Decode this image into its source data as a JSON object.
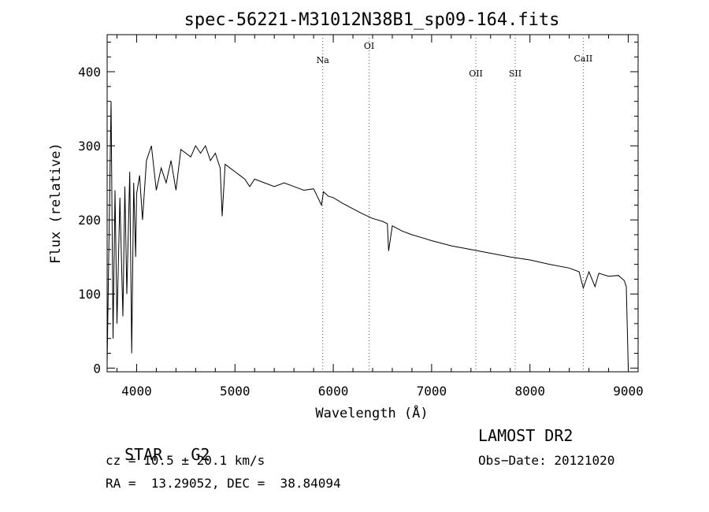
{
  "chart_data": {
    "type": "line",
    "title": "spec-56221-M31012N38B1_sp09-164.fits",
    "xlabel": "Wavelength (Å)",
    "ylabel": "Flux (relative)",
    "xlim": [
      3700,
      9100
    ],
    "ylim": [
      -5,
      450
    ],
    "xticks": [
      4000,
      5000,
      6000,
      7000,
      8000,
      9000
    ],
    "yticks": [
      0,
      100,
      200,
      300,
      400
    ],
    "grid": false,
    "series": [
      {
        "x": [
          3700,
          3740,
          3760,
          3780,
          3800,
          3830,
          3860,
          3880,
          3900,
          3930,
          3950,
          3970,
          3990,
          4000,
          4030,
          4060,
          4100,
          4150,
          4200,
          4250,
          4300,
          4350,
          4400,
          4450,
          4500,
          4550,
          4600,
          4650,
          4700,
          4750,
          4800,
          4850,
          4870,
          4900,
          4950,
          5000,
          5050,
          5100,
          5150,
          5200,
          5300,
          5400,
          5500,
          5600,
          5700,
          5800,
          5880,
          5900,
          5950,
          6000,
          6100,
          6200,
          6300,
          6400,
          6500,
          6550,
          6563,
          6600,
          6700,
          6800,
          6900,
          7000,
          7200,
          7400,
          7600,
          7800,
          8000,
          8200,
          8400,
          8500,
          8542,
          8600,
          8662,
          8700,
          8800,
          8900,
          8960,
          8980,
          9000
        ],
        "values": [
          5,
          360,
          40,
          240,
          60,
          230,
          70,
          245,
          100,
          265,
          20,
          250,
          150,
          235,
          260,
          200,
          280,
          300,
          240,
          270,
          250,
          280,
          240,
          295,
          290,
          285,
          300,
          290,
          300,
          280,
          290,
          270,
          205,
          275,
          270,
          265,
          260,
          255,
          245,
          255,
          250,
          245,
          250,
          245,
          240,
          242,
          220,
          238,
          232,
          230,
          222,
          215,
          208,
          202,
          198,
          195,
          158,
          192,
          185,
          180,
          176,
          172,
          165,
          160,
          155,
          150,
          146,
          140,
          135,
          130,
          108,
          130,
          110,
          128,
          124,
          125,
          118,
          110,
          0
        ]
      }
    ],
    "lines": [
      {
        "label": "Na",
        "x": 5893
      },
      {
        "label": "OI",
        "x": 6364
      },
      {
        "label": "OII",
        "x": 7450
      },
      {
        "label": "SII",
        "x": 7850
      },
      {
        "label": "CaII",
        "x": 8542
      }
    ]
  },
  "info": {
    "class_label": "STAR",
    "subclass": "G2",
    "survey": "LAMOST DR2",
    "cz": "cz = 10.5 ± 20.1 km/s",
    "obs_date": "Obs−Date: 20121020",
    "coords": "RA =  13.29052, DEC =  38.84094"
  }
}
